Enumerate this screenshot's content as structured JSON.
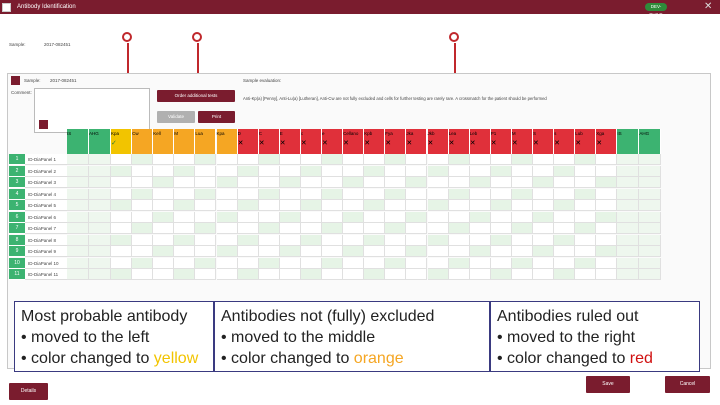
{
  "window": {
    "title": "Antibody Identification",
    "badge": "DEV-BUILD",
    "close_icon": "close-icon"
  },
  "sample_label_top": "Sample:",
  "sample_value_top": "2017-082451",
  "sample_label": "Sample:",
  "sample_value": "2017-082451",
  "comments_label": "Comment:",
  "sample_evaluation_label": "Sample evaluation:",
  "sample_evaluation_text": "Anti-Kp(a) [Penny], Anti-Lu(a) [Lutheran], Anti-Cw are not fully excluded and cells for further testing are rarely rare. A crossmatch for the patient should be performed",
  "buttons": {
    "order_additional": "Order additional tests",
    "validate": "Validate",
    "print": "Print",
    "details": "Details",
    "save": "Save",
    "cancel": "Cancel"
  },
  "columns": [
    "IS",
    "AHG",
    "Kpa",
    "Cw",
    "Kell",
    "M",
    "Lua",
    "Kpa",
    "D",
    "C",
    "E",
    "c",
    "e",
    "Cellano",
    "Kpb",
    "Fya",
    "Jka",
    "Jkb",
    "Lea",
    "Leb",
    "P1",
    "M",
    "S",
    "s",
    "Lub",
    "Xga",
    "IS",
    "AHG"
  ],
  "rows": [
    {
      "num": "1",
      "name": "ID-DiaPanel 1"
    },
    {
      "num": "2",
      "name": "ID-DiaPanel 2"
    },
    {
      "num": "3",
      "name": "ID-DiaPanel 3"
    },
    {
      "num": "4",
      "name": "ID-DiaPanel 4"
    },
    {
      "num": "5",
      "name": "ID-DiaPanel 5"
    },
    {
      "num": "6",
      "name": "ID-DiaPanel 6"
    },
    {
      "num": "7",
      "name": "ID-DiaPanel 7"
    },
    {
      "num": "8",
      "name": "ID-DiaPanel 8"
    },
    {
      "num": "9",
      "name": "ID-DiaPanel 9"
    },
    {
      "num": "10",
      "name": "ID-DiaPanel 10"
    },
    {
      "num": "11",
      "name": "ID-DiaPanel 11"
    }
  ],
  "overlay": {
    "box1": {
      "title": "Most probable antibody",
      "line1": "• moved to the left",
      "line2_pre": "• color changed to ",
      "line2_color": "yellow"
    },
    "box2": {
      "title": "Antibodies not (fully) excluded",
      "line1": "• moved to the middle",
      "line2_pre": "• color changed to ",
      "line2_color": "orange"
    },
    "box3": {
      "title": "Antibodies ruled out",
      "line1": "• moved to the right",
      "line2_pre": "• color changed to ",
      "line2_color": "red"
    }
  },
  "colors": {
    "brand": "#7a1c2e",
    "green": "#3cb371",
    "yellow": "#f2c400",
    "orange": "#f5a623",
    "red": "#e0303a",
    "arrow": "#c0282c"
  }
}
